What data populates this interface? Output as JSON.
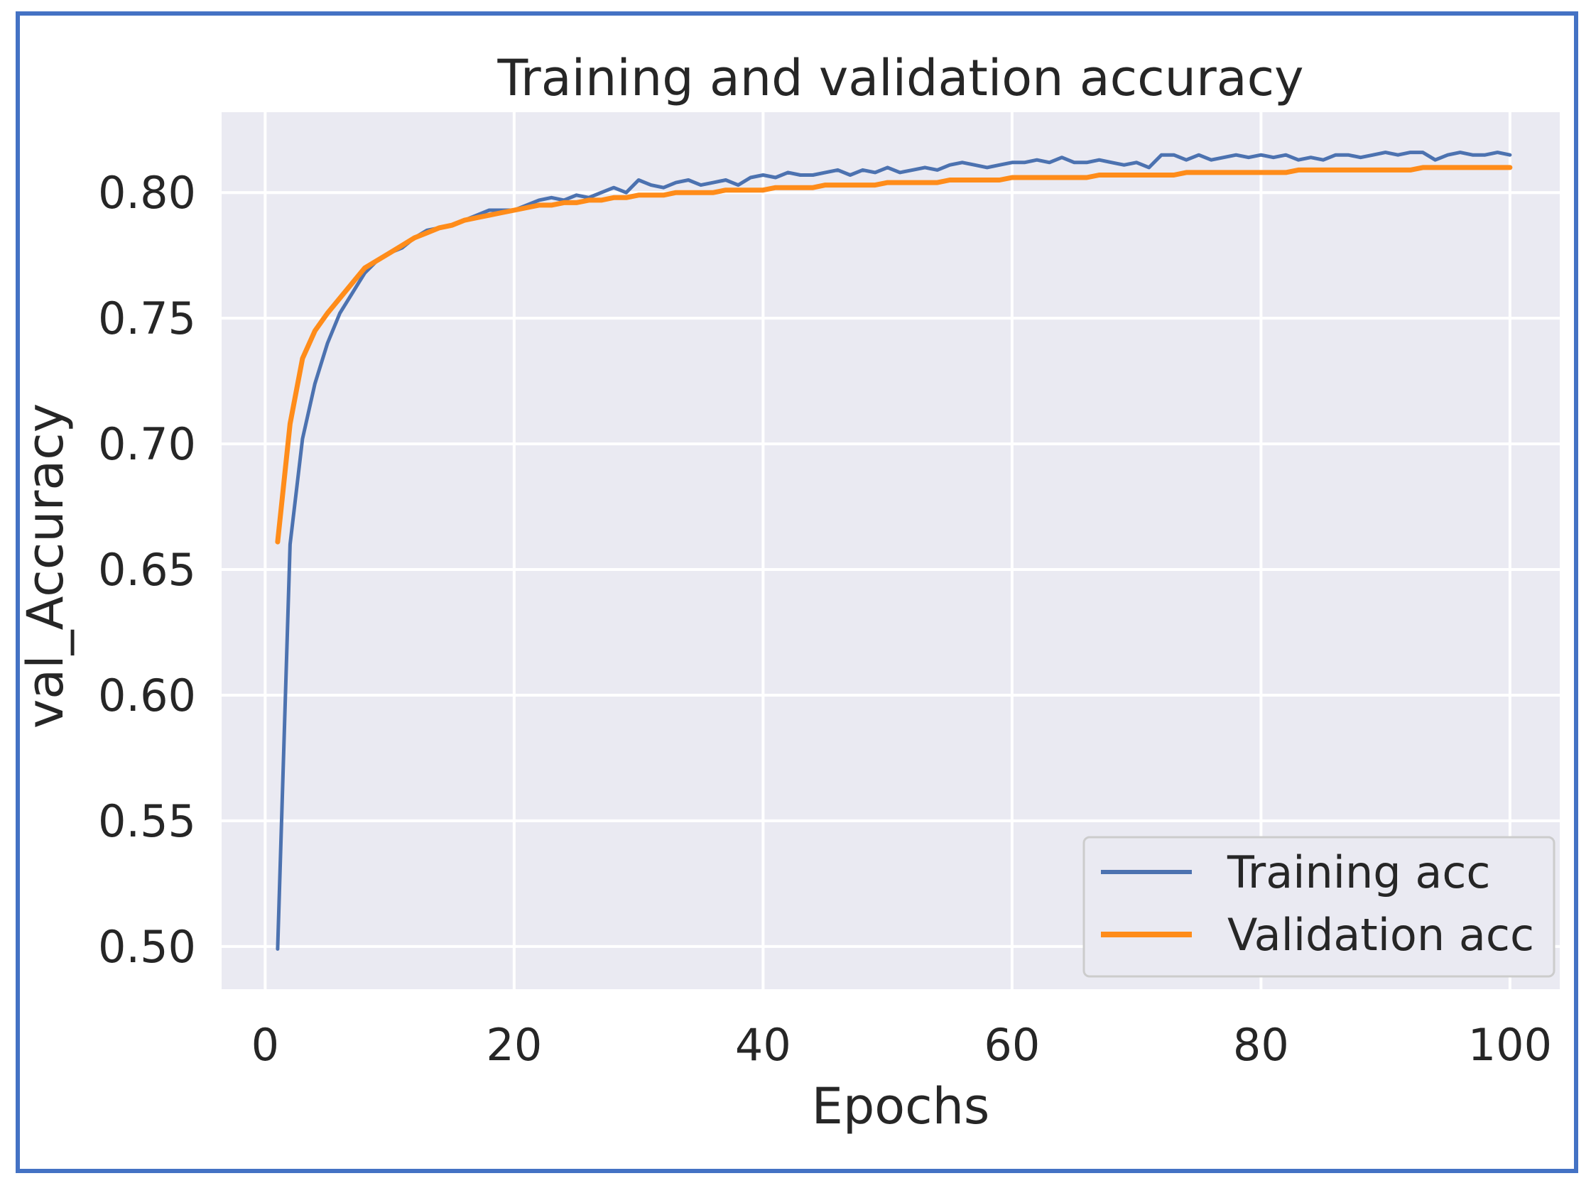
{
  "chart_data": {
    "type": "line",
    "title": "Training and validation accuracy",
    "xlabel": "Epochs",
    "ylabel": "val_Accuracy",
    "xlim": [
      -3.5,
      104
    ],
    "ylim": [
      0.483,
      0.832
    ],
    "xticks": [
      0,
      20,
      40,
      60,
      80,
      100
    ],
    "yticks": [
      0.5,
      0.55,
      0.6,
      0.65,
      0.7,
      0.75,
      0.8
    ],
    "xtick_labels": [
      "0",
      "20",
      "40",
      "60",
      "80",
      "100"
    ],
    "ytick_labels": [
      "0.50",
      "0.55",
      "0.60",
      "0.65",
      "0.70",
      "0.75",
      "0.80"
    ],
    "grid": true,
    "legend_position": "lower-right",
    "x": [
      1,
      2,
      3,
      4,
      5,
      6,
      7,
      8,
      9,
      10,
      11,
      12,
      13,
      14,
      15,
      16,
      17,
      18,
      19,
      20,
      21,
      22,
      23,
      24,
      25,
      26,
      27,
      28,
      29,
      30,
      31,
      32,
      33,
      34,
      35,
      36,
      37,
      38,
      39,
      40,
      41,
      42,
      43,
      44,
      45,
      46,
      47,
      48,
      49,
      50,
      51,
      52,
      53,
      54,
      55,
      56,
      57,
      58,
      59,
      60,
      61,
      62,
      63,
      64,
      65,
      66,
      67,
      68,
      69,
      70,
      71,
      72,
      73,
      74,
      75,
      76,
      77,
      78,
      79,
      80,
      81,
      82,
      83,
      84,
      85,
      86,
      87,
      88,
      89,
      90,
      91,
      92,
      93,
      94,
      95,
      96,
      97,
      98,
      99,
      100
    ],
    "series": [
      {
        "name": "Training acc",
        "color": "#4c72b0",
        "values": [
          0.499,
          0.66,
          0.702,
          0.724,
          0.74,
          0.752,
          0.76,
          0.768,
          0.773,
          0.776,
          0.778,
          0.782,
          0.785,
          0.786,
          0.787,
          0.789,
          0.791,
          0.793,
          0.793,
          0.793,
          0.795,
          0.797,
          0.798,
          0.797,
          0.799,
          0.798,
          0.8,
          0.802,
          0.8,
          0.805,
          0.803,
          0.802,
          0.804,
          0.805,
          0.803,
          0.804,
          0.805,
          0.803,
          0.806,
          0.807,
          0.806,
          0.808,
          0.807,
          0.807,
          0.808,
          0.809,
          0.807,
          0.809,
          0.808,
          0.81,
          0.808,
          0.809,
          0.81,
          0.809,
          0.811,
          0.812,
          0.811,
          0.81,
          0.811,
          0.812,
          0.812,
          0.813,
          0.812,
          0.814,
          0.812,
          0.812,
          0.813,
          0.812,
          0.811,
          0.812,
          0.81,
          0.815,
          0.815,
          0.813,
          0.815,
          0.813,
          0.814,
          0.815,
          0.814,
          0.815,
          0.814,
          0.815,
          0.813,
          0.814,
          0.813,
          0.815,
          0.815,
          0.814,
          0.815,
          0.816,
          0.815,
          0.816,
          0.816,
          0.813,
          0.815,
          0.816,
          0.815,
          0.815,
          0.816,
          0.815
        ]
      },
      {
        "name": "Validation acc",
        "color": "#ff8c1a",
        "values": [
          0.661,
          0.708,
          0.734,
          0.745,
          0.752,
          0.758,
          0.764,
          0.77,
          0.773,
          0.776,
          0.779,
          0.782,
          0.784,
          0.786,
          0.787,
          0.789,
          0.79,
          0.791,
          0.792,
          0.793,
          0.794,
          0.795,
          0.795,
          0.796,
          0.796,
          0.797,
          0.797,
          0.798,
          0.798,
          0.799,
          0.799,
          0.799,
          0.8,
          0.8,
          0.8,
          0.8,
          0.801,
          0.801,
          0.801,
          0.801,
          0.802,
          0.802,
          0.802,
          0.802,
          0.803,
          0.803,
          0.803,
          0.803,
          0.803,
          0.804,
          0.804,
          0.804,
          0.804,
          0.804,
          0.805,
          0.805,
          0.805,
          0.805,
          0.805,
          0.806,
          0.806,
          0.806,
          0.806,
          0.806,
          0.806,
          0.806,
          0.807,
          0.807,
          0.807,
          0.807,
          0.807,
          0.807,
          0.807,
          0.808,
          0.808,
          0.808,
          0.808,
          0.808,
          0.808,
          0.808,
          0.808,
          0.808,
          0.809,
          0.809,
          0.809,
          0.809,
          0.809,
          0.809,
          0.809,
          0.809,
          0.809,
          0.809,
          0.81,
          0.81,
          0.81,
          0.81,
          0.81,
          0.81,
          0.81,
          0.81
        ]
      }
    ]
  },
  "colors": {
    "frame_border": "#4472c4",
    "plot_background": "#eaeaf2",
    "grid": "#ffffff"
  }
}
